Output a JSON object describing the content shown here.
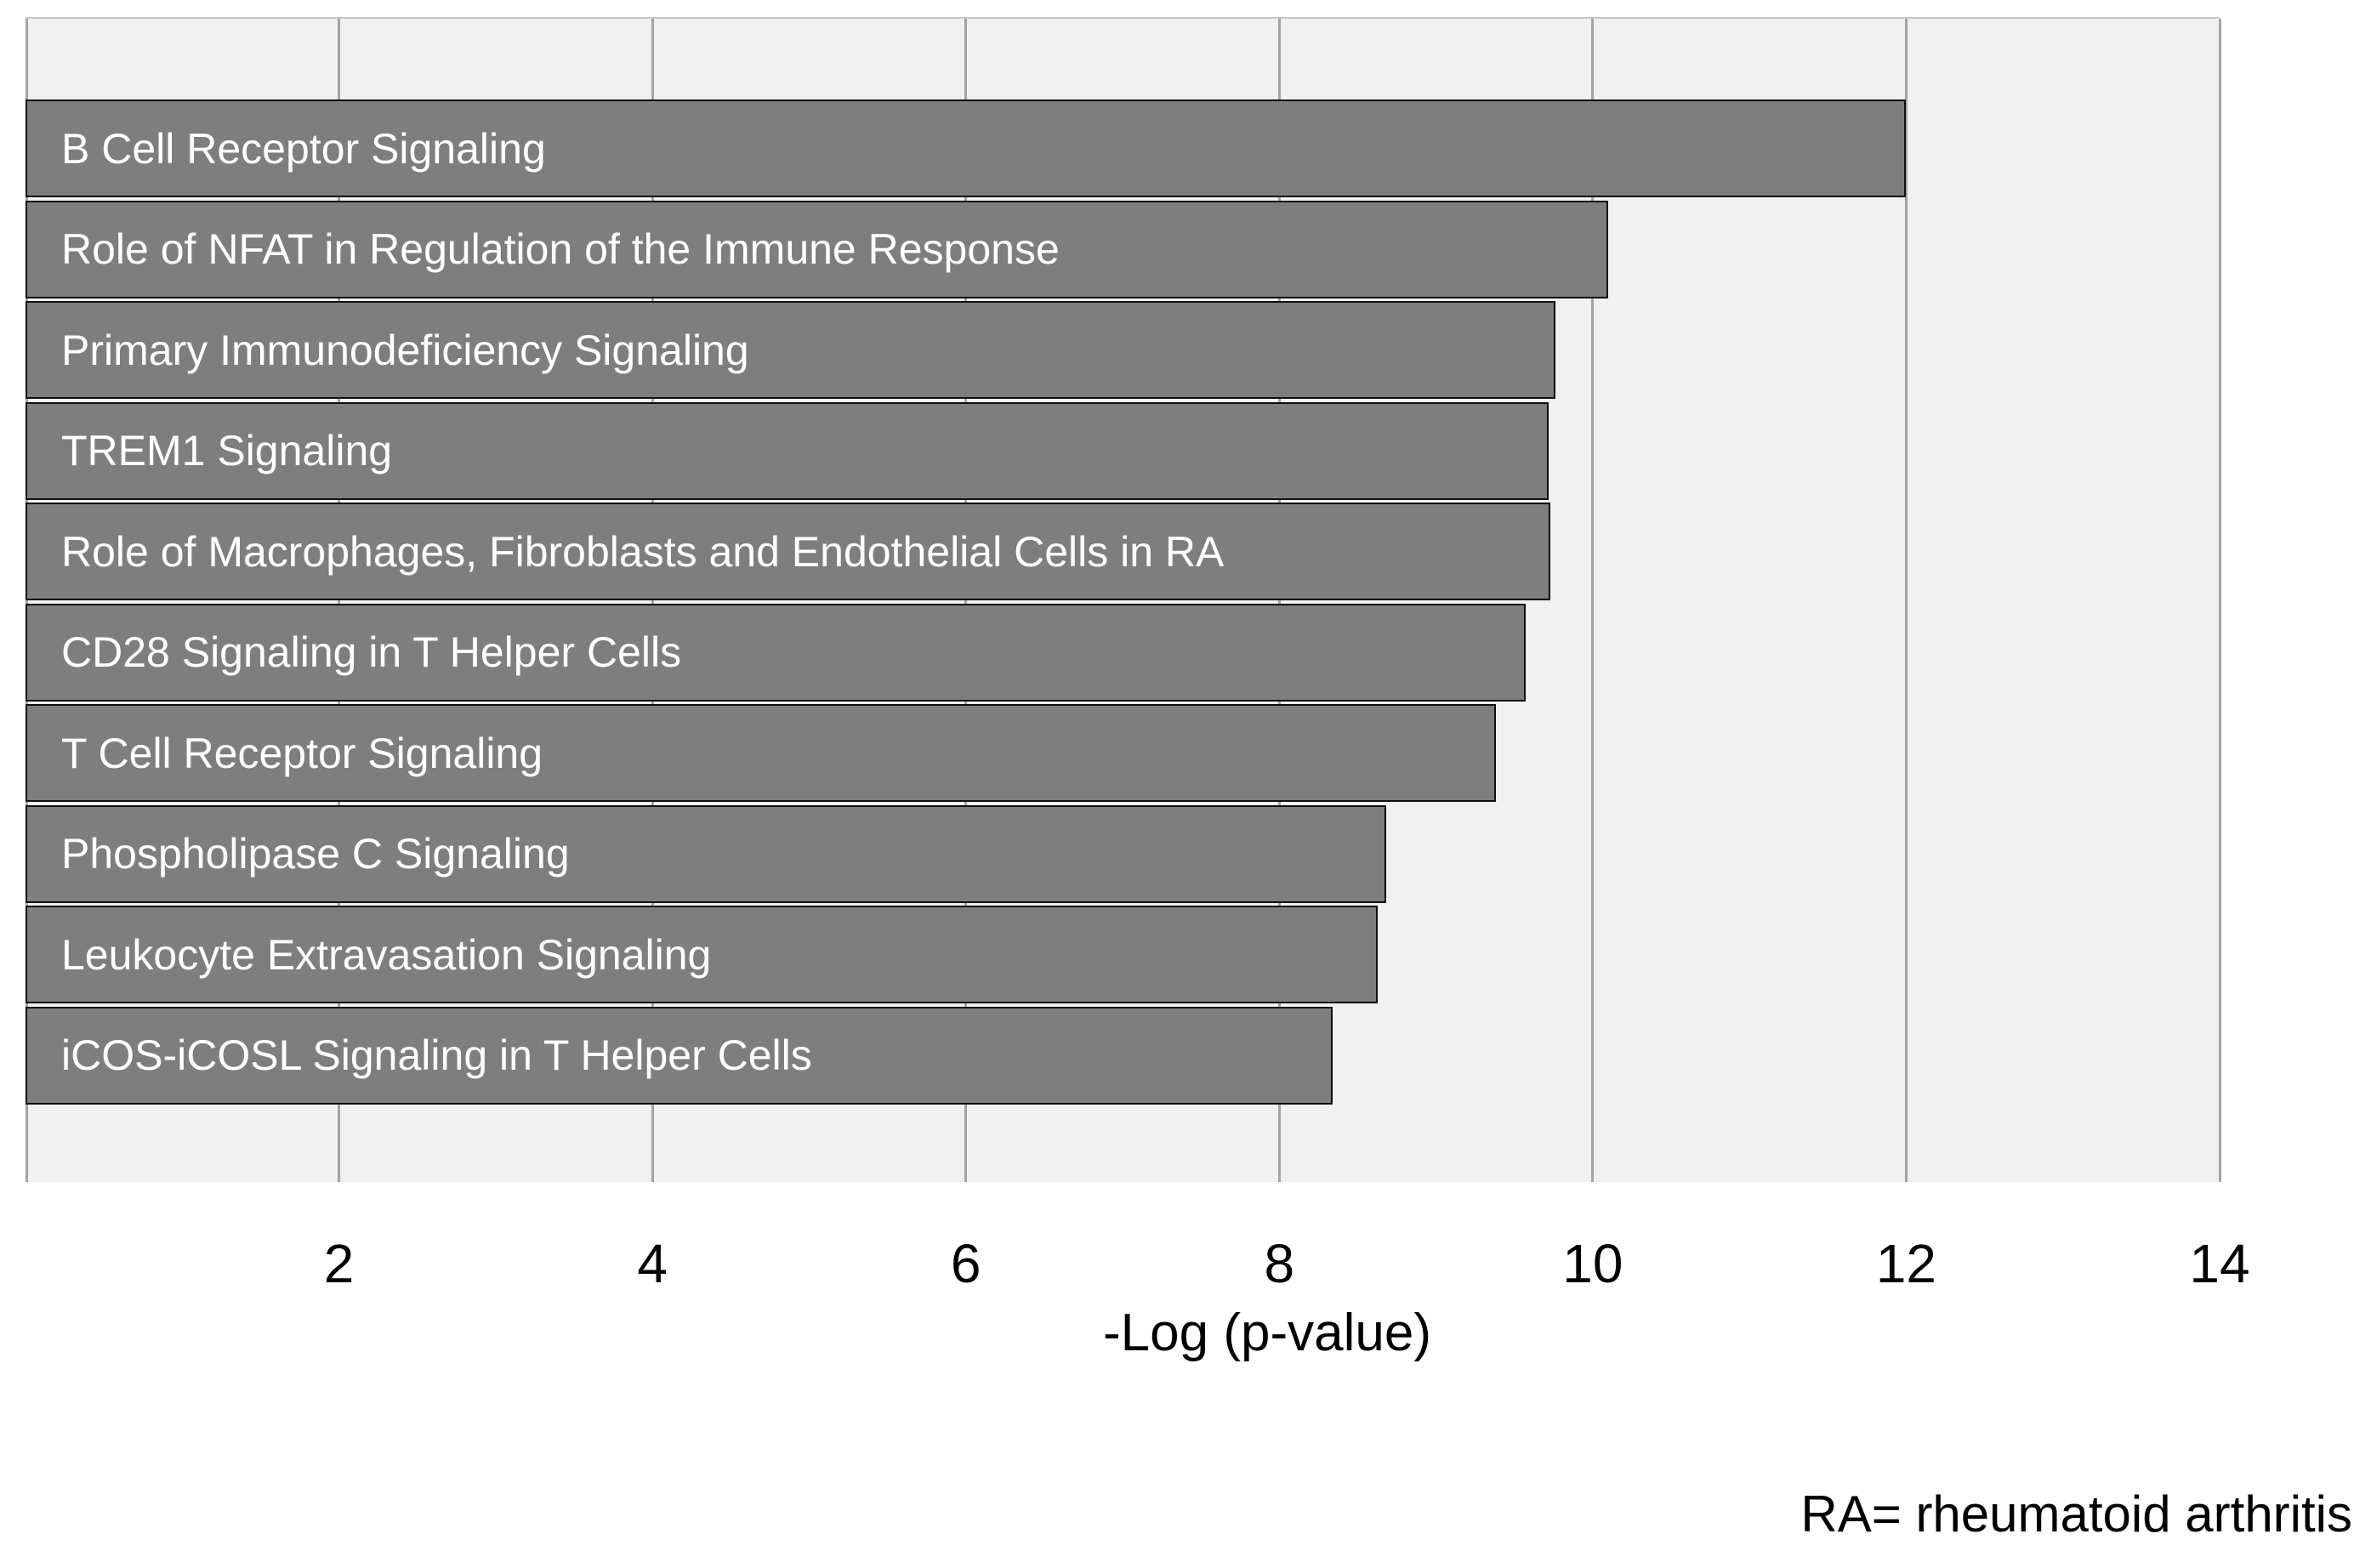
{
  "chart_data": {
    "type": "bar",
    "orientation": "horizontal",
    "title": "",
    "categories": [
      "B Cell Receptor Signaling",
      "Role of NFAT in Regulation of the Immune Response",
      "Primary Immunodeficiency Signaling",
      "TREM1 Signaling",
      "Role of Macrophages, Fibroblasts and Endothelial Cells in RA",
      "CD28 Signaling in T Helper Cells",
      "T Cell Receptor Signaling",
      "Phospholipase C Signaling",
      "Leukocyte Extravasation Signaling",
      "iCOS-iCOSL Signaling in T Helper Cells"
    ],
    "values": [
      12.0,
      10.1,
      9.76,
      9.72,
      9.73,
      9.57,
      9.38,
      8.68,
      8.63,
      8.34
    ],
    "xlabel": "-Log (p-value)",
    "ylabel": "",
    "xlim": [
      0,
      14
    ],
    "xticks": [
      2,
      4,
      6,
      8,
      10,
      12,
      14
    ],
    "grid": "vertical-gridlines-on",
    "legend": "none",
    "category_labels_position": "inside-bars",
    "colors": {
      "bar_fill": "#7e7e7e",
      "bar_border": "#0f0f0f",
      "bar_label_text": "#ffffff",
      "plot_background": "#f1f1f1",
      "gridline": "#a3a3a3",
      "axis_text": "#000000",
      "page_background": "#ffffff"
    }
  },
  "footnote": "RA= rheumatoid arthritis"
}
